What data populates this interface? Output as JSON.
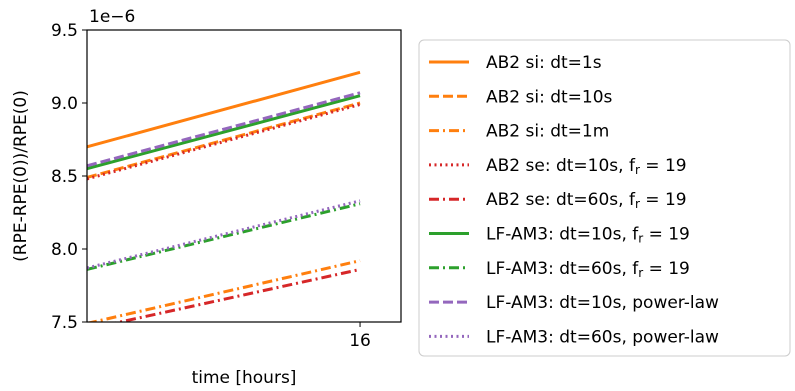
{
  "chart_data": {
    "type": "line",
    "xlabel": "time [hours]",
    "ylabel": "(RPE-RPE(0))/RPE(0)",
    "offset_text": "1e−6",
    "x_ticks": [
      {
        "value": 16,
        "label": "16"
      }
    ],
    "y_ticks": [
      {
        "value": 7.5,
        "label": "7.5"
      },
      {
        "value": 8.0,
        "label": "8.0"
      },
      {
        "value": 8.5,
        "label": "8.5"
      },
      {
        "value": 9.0,
        "label": "9.0"
      },
      {
        "value": 9.5,
        "label": "9.5"
      }
    ],
    "xlim": [
      0,
      18.4
    ],
    "ylim": [
      7.5,
      9.5
    ],
    "grid": false,
    "legend_placement": "outside-right",
    "series": [
      {
        "name": "AB2 si: dt=1s",
        "label_parts": [
          {
            "t": "AB2 si: dt=1s"
          }
        ],
        "color": "#ff7f0e",
        "dash": "solid",
        "x": [
          0,
          16
        ],
        "y": [
          8.7,
          9.21
        ]
      },
      {
        "name": "AB2 si: dt=10s",
        "label_parts": [
          {
            "t": "AB2 si: dt=10s"
          }
        ],
        "color": "#ff7f0e",
        "dash": "dashed",
        "x": [
          0,
          16
        ],
        "y": [
          8.49,
          9.0
        ]
      },
      {
        "name": "AB2 si: dt=1m",
        "label_parts": [
          {
            "t": "AB2 si: dt=1m"
          }
        ],
        "color": "#ff7f0e",
        "dash": "dashdot",
        "x": [
          0,
          16
        ],
        "y": [
          7.49,
          7.92
        ]
      },
      {
        "name": "AB2 se: dt=10s, f_r = 19",
        "label_parts": [
          {
            "t": "AB2 se: dt=10s, f"
          },
          {
            "t": "r",
            "sub": true
          },
          {
            "t": " = 19"
          }
        ],
        "color": "#d62728",
        "dash": "dotted",
        "x": [
          0,
          16
        ],
        "y": [
          8.48,
          8.99
        ]
      },
      {
        "name": "AB2 se: dt=60s, f_r = 19",
        "label_parts": [
          {
            "t": "AB2 se: dt=60s, f"
          },
          {
            "t": "r",
            "sub": true
          },
          {
            "t": " = 19"
          }
        ],
        "color": "#d62728",
        "dash": "dashdot",
        "x": [
          0,
          16
        ],
        "y": [
          7.45,
          7.86
        ]
      },
      {
        "name": "LF-AM3: dt=10s, f_r = 19",
        "label_parts": [
          {
            "t": "LF-AM3: dt=10s, f"
          },
          {
            "t": "r",
            "sub": true
          },
          {
            "t": " = 19"
          }
        ],
        "color": "#2ca02c",
        "dash": "solid",
        "x": [
          0,
          16
        ],
        "y": [
          8.55,
          9.05
        ]
      },
      {
        "name": "LF-AM3: dt=60s, f_r = 19",
        "label_parts": [
          {
            "t": "LF-AM3: dt=60s, f"
          },
          {
            "t": "r",
            "sub": true
          },
          {
            "t": " = 19"
          }
        ],
        "color": "#2ca02c",
        "dash": "dashdot",
        "x": [
          0,
          16
        ],
        "y": [
          7.86,
          8.31
        ]
      },
      {
        "name": "LF-AM3: dt=10s, power-law",
        "label_parts": [
          {
            "t": "LF-AM3: dt=10s, power-law"
          }
        ],
        "color": "#9467bd",
        "dash": "dashed",
        "x": [
          0,
          16
        ],
        "y": [
          8.57,
          9.07
        ]
      },
      {
        "name": "LF-AM3: dt=60s, power-law",
        "label_parts": [
          {
            "t": "LF-AM3: dt=60s, power-law"
          }
        ],
        "color": "#9467bd",
        "dash": "dotted",
        "x": [
          0,
          16
        ],
        "y": [
          7.87,
          8.33
        ]
      }
    ]
  }
}
